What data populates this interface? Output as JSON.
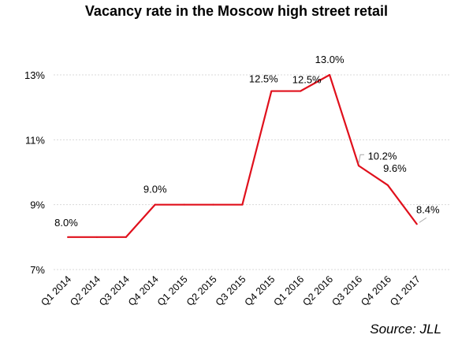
{
  "chart_data": {
    "type": "line",
    "title": "Vacancy rate in the Moscow high street retail",
    "categories": [
      "Q1 2014",
      "Q2 2014",
      "Q3 2014",
      "Q4 2014",
      "Q1 2015",
      "Q2 2015",
      "Q3 2015",
      "Q4 2015",
      "Q1 2016",
      "Q2 2016",
      "Q3 2016",
      "Q4 2016",
      "Q1 2017"
    ],
    "values": [
      8.0,
      8.0,
      8.0,
      9.0,
      9.0,
      9.0,
      9.0,
      12.5,
      12.5,
      13.0,
      10.2,
      9.6,
      8.4
    ],
    "data_labels": [
      {
        "index": 0,
        "text": "8.0%"
      },
      {
        "index": 3,
        "text": "9.0%"
      },
      {
        "index": 7,
        "text": "12.5%"
      },
      {
        "index": 8,
        "text": "12.5%"
      },
      {
        "index": 9,
        "text": "13.0%"
      },
      {
        "index": 10,
        "text": "10.2%"
      },
      {
        "index": 11,
        "text": "9.6%"
      },
      {
        "index": 12,
        "text": "8.4%"
      }
    ],
    "yticks": [
      "7%",
      "9%",
      "11%",
      "13%"
    ],
    "ytick_values": [
      7,
      9,
      11,
      13
    ],
    "ylim": [
      7,
      13
    ],
    "xlabel": "",
    "ylabel": "",
    "grid": true,
    "line_color": "#e0101c",
    "source": "Source: JLL"
  }
}
